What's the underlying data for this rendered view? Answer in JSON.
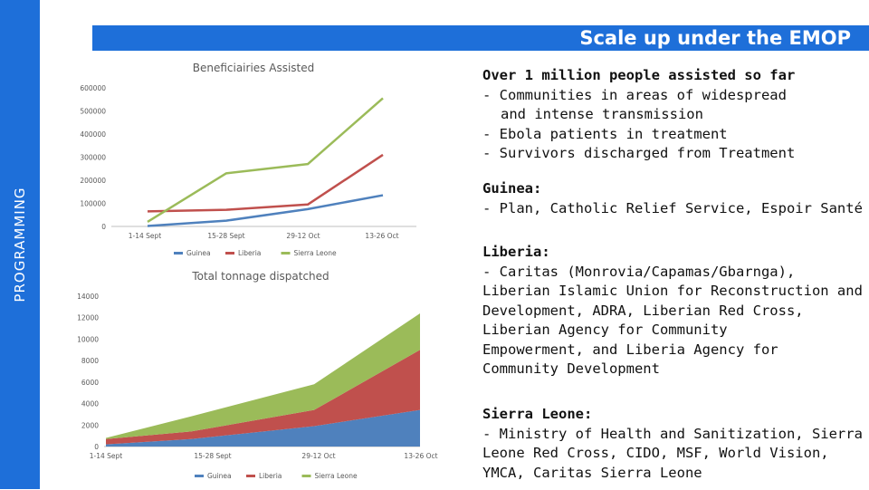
{
  "sidebar": {
    "label": "PROGRAMMING"
  },
  "banner": {
    "title": "Scale up under the EMOP"
  },
  "chart_data": [
    {
      "type": "line",
      "title": "Beneficiairies Assisted",
      "categories": [
        "1-14 Sept",
        "15-28 Sept",
        "29-12 Oct",
        "13-26 Oct"
      ],
      "series": [
        {
          "name": "Guinea",
          "color": "#4f81bd",
          "values": [
            2000,
            25000,
            75000,
            135000
          ]
        },
        {
          "name": "Liberia",
          "color": "#c0504d",
          "values": [
            65000,
            72000,
            95000,
            310000
          ]
        },
        {
          "name": "Sierra Leone",
          "color": "#9bbb59",
          "values": [
            20000,
            230000,
            270000,
            555000
          ]
        }
      ],
      "yticks": [
        "0",
        "100000",
        "200000",
        "300000",
        "400000",
        "500000",
        "600000"
      ],
      "ylim": [
        0,
        600000
      ],
      "legend": "bottom"
    },
    {
      "type": "area",
      "stacked": true,
      "title": "Total tonnage dispatched",
      "categories": [
        "1-14 Sept",
        "15-28 Sept",
        "29-12 Oct",
        "13-26 Oct"
      ],
      "series": [
        {
          "name": "Guinea",
          "color": "#4f81bd",
          "values": [
            200,
            700,
            1900,
            3400
          ]
        },
        {
          "name": "Liberia",
          "color": "#c0504d",
          "values": [
            500,
            700,
            1500,
            5600
          ]
        },
        {
          "name": "Sierra Leone",
          "color": "#9bbb59",
          "values": [
            100,
            1400,
            2400,
            3400
          ]
        }
      ],
      "yticks": [
        "0",
        "2000",
        "4000",
        "6000",
        "8000",
        "10000",
        "12000",
        "14000"
      ],
      "ylim": [
        0,
        14000
      ],
      "legend": "bottom"
    }
  ],
  "notes": {
    "summary": {
      "heading": "Over 1 million people assisted so far",
      "items": [
        "-  Communities in areas of widespread",
        "and intense transmission",
        "-  Ebola patients in treatment",
        "-  Survivors discharged from Treatment"
      ]
    },
    "guinea": {
      "heading": "Guinea:",
      "lines": [
        "- Plan, Catholic Relief Service, Espoir Santé"
      ]
    },
    "liberia": {
      "heading": "Liberia:",
      "lines": [
        "- Caritas (Monrovia/Capamas/Gbarnga),",
        "Liberian Islamic Union for Reconstruction and",
        "Development, ADRA, Liberian Red Cross,",
        "Liberian Agency for Community",
        "Empowerment, and Liberia Agency for",
        "Community Development"
      ]
    },
    "sierra_leone": {
      "heading": "Sierra Leone:",
      "lines": [
        "- Ministry of Health and Sanitization, Sierra",
        "Leone Red Cross, CIDO, MSF, World Vision,",
        "YMCA, Caritas Sierra Leone"
      ]
    }
  }
}
